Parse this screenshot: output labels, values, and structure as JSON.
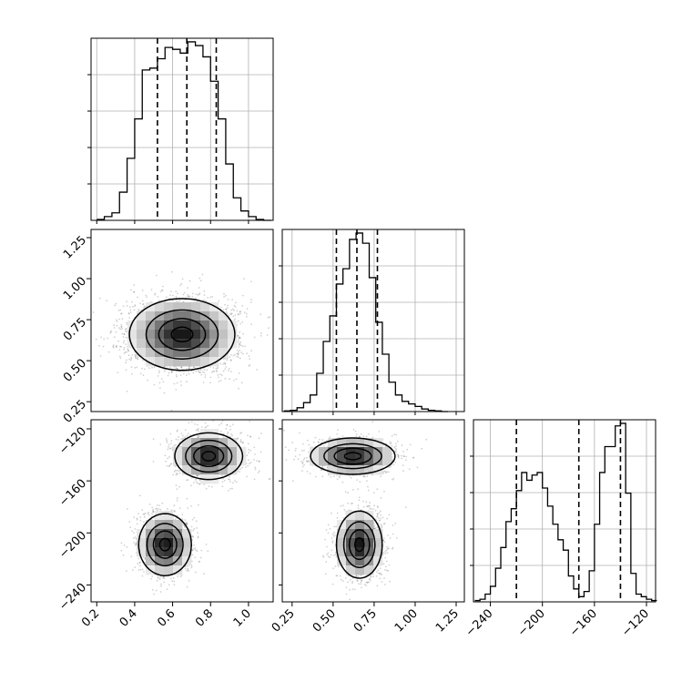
{
  "chart_data": {
    "type": "corner",
    "title": "",
    "parameters": [
      {
        "range": [
          0.17,
          1.13
        ],
        "ticks": [
          0.2,
          0.4,
          0.6,
          0.8,
          1.0
        ],
        "tick_labels": [
          "0.2",
          "0.4",
          "0.6",
          "0.8",
          "1.0"
        ]
      },
      {
        "range": [
          0.19,
          1.3
        ],
        "ticks": [
          0.25,
          0.5,
          0.75,
          1.0,
          1.25
        ],
        "tick_labels": [
          "0.25",
          "0.50",
          "0.75",
          "1.00",
          "1.25"
        ]
      },
      {
        "range": [
          -253,
          -113
        ],
        "ticks": [
          -240,
          -200,
          -160,
          -120
        ],
        "tick_labels": [
          "−240",
          "−200",
          "−160",
          "−120"
        ]
      }
    ],
    "quantile_lines": [
      [
        0.52,
        0.675,
        0.83
      ],
      [
        0.52,
        0.645,
        0.77
      ],
      [
        -220,
        -172,
        -140
      ]
    ],
    "histograms": [
      {
        "edges": [
          0.2,
          0.24,
          0.28,
          0.32,
          0.36,
          0.4,
          0.44,
          0.48,
          0.52,
          0.56,
          0.6,
          0.64,
          0.68,
          0.72,
          0.76,
          0.8,
          0.84,
          0.88,
          0.92,
          0.96,
          1.0,
          1.04,
          1.08,
          1.12
        ],
        "counts": [
          0.5,
          2,
          4,
          15,
          33,
          54,
          80,
          81,
          86,
          92,
          91,
          89,
          95,
          93,
          87,
          74,
          54,
          30,
          12,
          5,
          2,
          0.5,
          0
        ]
      },
      {
        "edges": [
          0.2,
          0.24,
          0.28,
          0.32,
          0.36,
          0.4,
          0.44,
          0.48,
          0.52,
          0.56,
          0.6,
          0.64,
          0.68,
          0.72,
          0.76,
          0.8,
          0.84,
          0.88,
          0.92,
          0.96,
          1.0,
          1.04,
          1.08,
          1.12,
          1.16,
          1.2
        ],
        "counts": [
          0.5,
          1,
          3,
          7,
          13,
          30,
          55,
          75,
          100,
          112,
          135,
          140,
          132,
          105,
          70,
          45,
          23,
          13,
          8,
          6,
          4,
          2,
          1,
          0.5,
          0
        ]
      },
      {
        "edges": [
          -252,
          -248,
          -244,
          -240,
          -236,
          -232,
          -228,
          -224,
          -220,
          -216,
          -212,
          -208,
          -204,
          -200,
          -196,
          -192,
          -188,
          -184,
          -180,
          -176,
          -172,
          -168,
          -164,
          -160,
          -156,
          -152,
          -148,
          -144,
          -140,
          -136,
          -132,
          -128,
          -124,
          -120,
          -116,
          -112
        ],
        "counts": [
          0.5,
          1,
          3,
          6,
          13,
          21,
          31,
          36,
          43,
          50,
          47,
          49,
          50,
          44,
          37,
          30,
          24,
          20,
          10,
          5,
          2,
          4,
          12,
          30,
          50,
          60,
          60,
          68,
          69,
          42,
          11,
          3,
          2,
          1,
          0.5
        ]
      }
    ],
    "joint_modes": {
      "x1_vs_x0": [
        {
          "center": [
            0.65,
            0.66
          ],
          "spread": [
            0.14,
            0.11
          ]
        }
      ],
      "x2_vs_x0": [
        {
          "center": [
            0.79,
            -141
          ],
          "spread": [
            0.09,
            9
          ]
        },
        {
          "center": [
            0.56,
            -209
          ],
          "spread": [
            0.07,
            12
          ]
        }
      ],
      "x2_vs_x1": [
        {
          "center": [
            0.62,
            -141
          ],
          "spread": [
            0.13,
            7
          ]
        },
        {
          "center": [
            0.66,
            -209
          ],
          "spread": [
            0.07,
            13
          ]
        }
      ]
    }
  }
}
